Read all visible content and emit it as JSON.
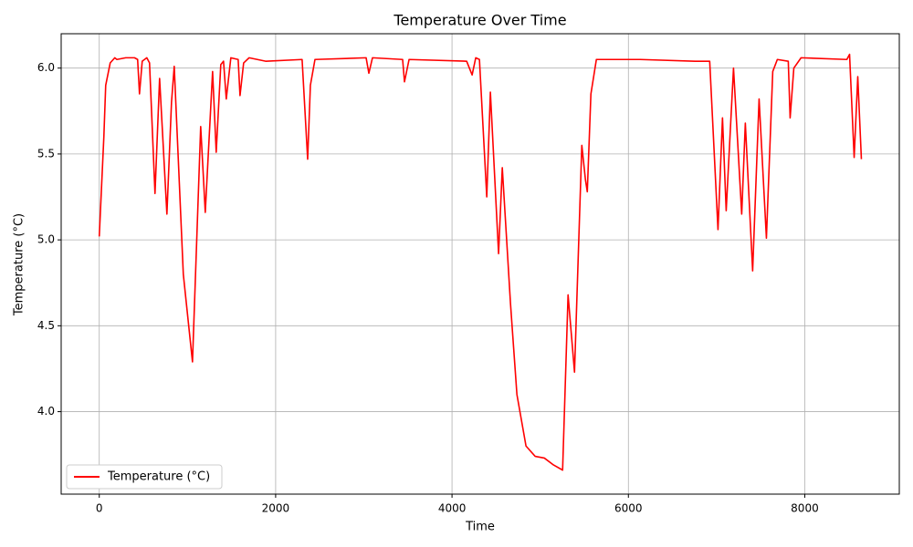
{
  "chart_data": {
    "type": "line",
    "title": "Temperature Over Time",
    "x_label": "Time",
    "y_label": "Temperature (°C)",
    "x": [
      0,
      52,
      73,
      124,
      176,
      200,
      300,
      400,
      435,
      456,
      487,
      539,
      570,
      632,
      684,
      767,
      819,
      850,
      953,
      1057,
      1150,
      1202,
      1285,
      1326,
      1378,
      1409,
      1440,
      1492,
      1575,
      1596,
      1637,
      1699,
      1886,
      2300,
      2363,
      2394,
      2446,
      3026,
      3057,
      3098,
      3440,
      3461,
      3513,
      4166,
      4228,
      4269,
      4311,
      4394,
      4435,
      4528,
      4570,
      4663,
      4736,
      4839,
      4943,
      5047,
      5150,
      5254,
      5316,
      5389,
      5472,
      5513,
      5534,
      5575,
      5637,
      6135,
      6756,
      6922,
      7016,
      7067,
      7109,
      7192,
      7285,
      7326,
      7409,
      7482,
      7565,
      7637,
      7689,
      7813,
      7834,
      7876,
      7958,
      8477,
      8508,
      8560,
      8601,
      8642
    ],
    "series": [
      {
        "name": "Temperature (°C)",
        "color": "#ff0000",
        "values": [
          5.02,
          5.6,
          5.9,
          6.03,
          6.06,
          6.05,
          6.06,
          6.06,
          6.05,
          5.85,
          6.04,
          6.06,
          6.03,
          5.27,
          5.94,
          5.15,
          5.8,
          6.01,
          4.8,
          4.29,
          5.66,
          5.16,
          5.98,
          5.51,
          6.02,
          6.04,
          5.82,
          6.06,
          6.05,
          5.84,
          6.03,
          6.06,
          6.04,
          6.05,
          5.47,
          5.9,
          6.05,
          6.06,
          5.97,
          6.06,
          6.05,
          5.92,
          6.05,
          6.04,
          5.96,
          6.06,
          6.05,
          5.25,
          5.86,
          4.92,
          5.42,
          4.63,
          4.1,
          3.8,
          3.74,
          3.73,
          3.69,
          3.66,
          4.68,
          4.23,
          5.55,
          5.35,
          5.28,
          5.85,
          6.05,
          6.05,
          6.04,
          6.04,
          5.06,
          5.71,
          5.17,
          6.0,
          5.15,
          5.68,
          4.82,
          5.82,
          5.01,
          5.98,
          6.05,
          6.04,
          5.71,
          6.0,
          6.06,
          6.05,
          6.08,
          5.48,
          5.95,
          5.47
        ]
      }
    ],
    "xlim": [
      -432,
      9072
    ],
    "ylim": [
      3.52,
      6.2
    ],
    "xticks": [
      0,
      2000,
      4000,
      6000,
      8000
    ],
    "yticks": [
      {
        "value": 4,
        "label": "4.0"
      },
      4.5,
      {
        "value": 5,
        "label": "5.0"
      },
      5.5,
      {
        "value": 6,
        "label": "6.0"
      }
    ],
    "grid": true,
    "legend": "lower left"
  }
}
